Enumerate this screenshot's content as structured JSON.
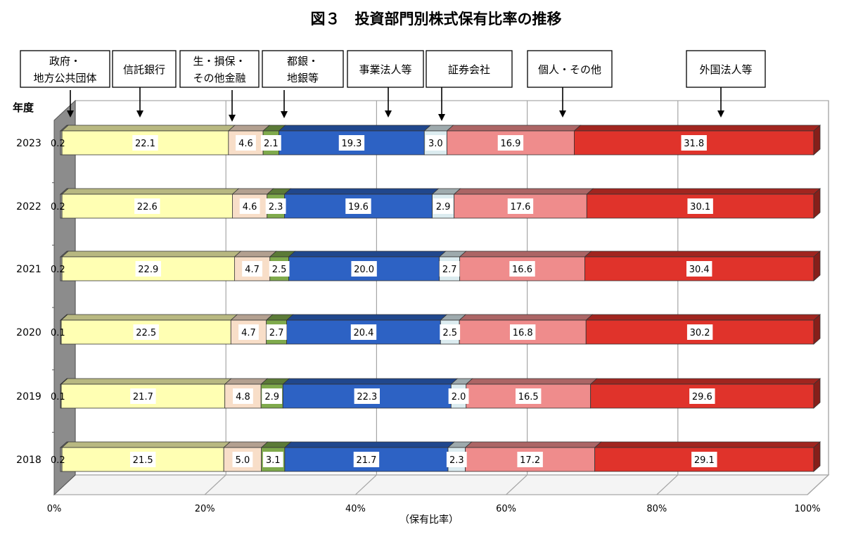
{
  "chart_data": {
    "type": "bar",
    "orientation": "horizontal",
    "stacked": "percent",
    "title": "図３　投資部門別株式保有比率の推移",
    "xlabel": "（保有比率）",
    "ylabel": "年度",
    "xlim": [
      0,
      100
    ],
    "x_tick_labels": [
      "0%",
      "20%",
      "40%",
      "60%",
      "80%",
      "100%"
    ],
    "categories": [
      "2023",
      "2022",
      "2021",
      "2020",
      "2019",
      "2018"
    ],
    "series": [
      {
        "name": "政府・地方公共団体",
        "label_lines": [
          "政府・",
          "地方公共団体"
        ],
        "color": "#a5a5a5",
        "values": [
          0.2,
          0.2,
          0.2,
          0.1,
          0.1,
          0.2
        ]
      },
      {
        "name": "信託銀行",
        "label_lines": [
          "信託銀行"
        ],
        "color": "#ffffb3",
        "values": [
          22.1,
          22.6,
          22.9,
          22.5,
          21.7,
          21.5
        ]
      },
      {
        "name": "生・損保・その他金融",
        "label_lines": [
          "生・損保・",
          "その他金融"
        ],
        "color": "#f8dec8",
        "values": [
          4.6,
          4.6,
          4.7,
          4.7,
          4.8,
          5.0
        ]
      },
      {
        "name": "都銀・地銀等",
        "label_lines": [
          "都銀・",
          "地銀等"
        ],
        "color": "#7faa4c",
        "values": [
          2.1,
          2.3,
          2.5,
          2.7,
          2.9,
          3.1
        ]
      },
      {
        "name": "事業法人等",
        "label_lines": [
          "事業法人等"
        ],
        "color": "#2d62c4",
        "values": [
          19.3,
          19.6,
          20.0,
          20.4,
          22.3,
          21.7
        ]
      },
      {
        "name": "証券会社",
        "label_lines": [
          "証券会社"
        ],
        "color": "#dcecf0",
        "values": [
          3.0,
          2.9,
          2.7,
          2.5,
          2.0,
          2.3
        ]
      },
      {
        "name": "個人・その他",
        "label_lines": [
          "個人・その他"
        ],
        "color": "#ef8c8c",
        "values": [
          16.9,
          17.6,
          16.6,
          16.8,
          16.5,
          17.2
        ]
      },
      {
        "name": "外国法人等",
        "label_lines": [
          "外国法人等"
        ],
        "color": "#e0332b",
        "values": [
          31.8,
          30.1,
          30.4,
          30.2,
          29.6,
          29.1
        ]
      }
    ],
    "value_labels": [
      [
        "0.2",
        "22.1",
        "4.6",
        "2.1",
        "19.3",
        "3.0",
        "16.9",
        "31.8"
      ],
      [
        "0.2",
        "22.6",
        "4.6",
        "2.3",
        "19.6",
        "2.9",
        "17.6",
        "30.1"
      ],
      [
        "0.2",
        "22.9",
        "4.7",
        "2.5",
        "20.0",
        "2.7",
        "16.6",
        "30.4"
      ],
      [
        "0.1",
        "22.5",
        "4.7",
        "2.7",
        "20.4",
        "2.5",
        "16.8",
        "30.2"
      ],
      [
        "0.1",
        "21.7",
        "4.8",
        "2.9",
        "22.3",
        "2.0",
        "16.5",
        "29.6"
      ],
      [
        "0.2",
        "21.5",
        "5.0",
        "3.1",
        "21.7",
        "2.3",
        "17.2",
        "29.1"
      ]
    ],
    "grid": true,
    "legend": "top (callout boxes with arrows)"
  }
}
